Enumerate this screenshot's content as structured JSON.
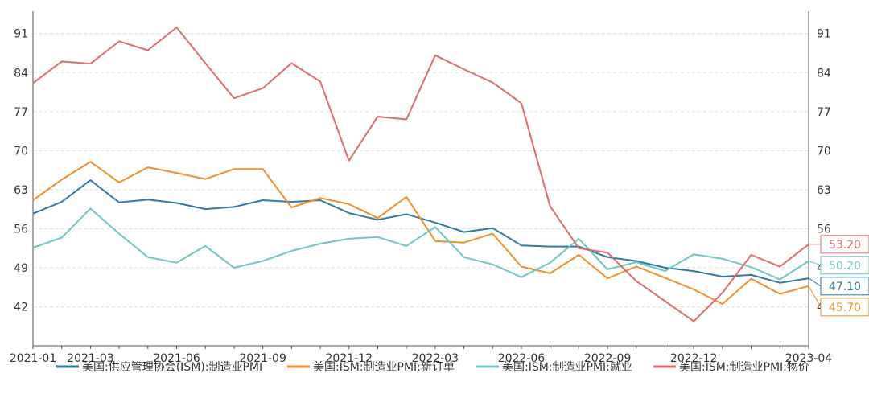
{
  "chart_data": {
    "type": "line",
    "title": "",
    "xlabel": "",
    "ylabel": "",
    "ylim": [
      35,
      95
    ],
    "y_ticks": [
      42,
      49,
      56,
      63,
      70,
      77,
      84,
      91
    ],
    "y_axes": "left and right (mirrored)",
    "grid": "horizontal dashed",
    "legend_placement": "bottom",
    "x": [
      "2021-01",
      "2021-02",
      "2021-03",
      "2021-04",
      "2021-05",
      "2021-06",
      "2021-07",
      "2021-08",
      "2021-09",
      "2021-10",
      "2021-11",
      "2021-12",
      "2022-01",
      "2022-02",
      "2022-03",
      "2022-04",
      "2022-05",
      "2022-06",
      "2022-07",
      "2022-08",
      "2022-09",
      "2022-10",
      "2022-11",
      "2022-12",
      "2023-01",
      "2023-02",
      "2023-03",
      "2023-04"
    ],
    "x_tick_labels": [
      "2021-01",
      "2021-03",
      "2021-06",
      "2021-09",
      "2021-12",
      "2022-03",
      "2022-06",
      "2022-09",
      "2022-12",
      "2023-04"
    ],
    "series": [
      {
        "name": "美国:供应管理协会(ISM):制造业PMI",
        "color": "#2e7ba6",
        "end_label": "47.10",
        "values": [
          58.7,
          60.8,
          64.7,
          60.7,
          61.2,
          60.6,
          59.5,
          59.9,
          61.1,
          60.8,
          61.1,
          58.8,
          57.6,
          58.6,
          57.1,
          55.4,
          56.1,
          53.0,
          52.8,
          52.8,
          50.9,
          50.2,
          49.0,
          48.4,
          47.4,
          47.7,
          46.3,
          47.1
        ]
      },
      {
        "name": "美国:ISM:制造业PMI:新订单",
        "color": "#f0902a",
        "end_label": "45.70",
        "values": [
          61.1,
          64.8,
          68.0,
          64.3,
          67.0,
          66.0,
          64.9,
          66.7,
          66.7,
          59.8,
          61.5,
          60.4,
          57.9,
          61.7,
          53.8,
          53.5,
          55.1,
          49.2,
          48.0,
          51.3,
          47.1,
          49.2,
          47.2,
          45.1,
          42.5,
          47.0,
          44.3,
          45.7
        ]
      },
      {
        "name": "美国:ISM:制造业PMI:就业",
        "color": "#6cc7c7",
        "end_label": "50.20",
        "values": [
          52.6,
          54.4,
          59.6,
          55.1,
          50.9,
          49.9,
          52.9,
          49.0,
          50.2,
          52.0,
          53.3,
          54.2,
          54.5,
          52.9,
          56.3,
          50.9,
          49.6,
          47.3,
          49.9,
          54.2,
          48.7,
          50.0,
          48.4,
          51.4,
          50.6,
          49.1,
          46.9,
          50.2
        ]
      },
      {
        "name": "美国:ISM:制造业PMI:物价",
        "color": "#e06b6b",
        "end_label": "53.20",
        "values": [
          82.1,
          86.0,
          85.6,
          89.6,
          88.0,
          92.1,
          85.7,
          79.4,
          81.2,
          85.7,
          82.4,
          68.2,
          76.1,
          75.6,
          87.1,
          84.6,
          82.2,
          78.5,
          60.0,
          52.5,
          51.7,
          46.6,
          43.0,
          39.4,
          44.5,
          51.3,
          49.2,
          53.2
        ]
      }
    ]
  }
}
